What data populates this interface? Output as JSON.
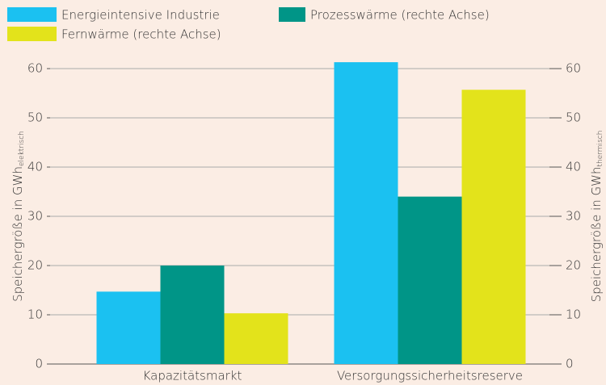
{
  "chart_data": {
    "type": "bar",
    "categories": [
      "Kapazitätsmarkt",
      "Versorgungssicherheitsreserve"
    ],
    "series": [
      {
        "name": "Energieintensive Industrie",
        "color": "#1bc1f1",
        "values": [
          14.7,
          61.3
        ]
      },
      {
        "name": "Prozesswärme (rechte Achse)",
        "color": "#009587",
        "values": [
          20,
          34
        ],
        "axis": "y2"
      },
      {
        "name": "Fernwärme (rechte Achse)",
        "color": "#e3e31b",
        "values": [
          10.3,
          55.7
        ],
        "axis": "y2"
      }
    ],
    "ylabel": {
      "text": "Speichergröße in GWh",
      "subscript": "elektrisch"
    },
    "y2label": {
      "text": "Speichergröße in GWh",
      "subscript": "thermisch"
    },
    "ylim": [
      0,
      60
    ],
    "yticks": [
      0,
      10,
      20,
      30,
      40,
      50,
      60
    ],
    "y2lim": [
      0,
      60
    ],
    "y2ticks": [
      0,
      10,
      20,
      30,
      40,
      50,
      60
    ],
    "grid": true,
    "legend": "top-left"
  }
}
